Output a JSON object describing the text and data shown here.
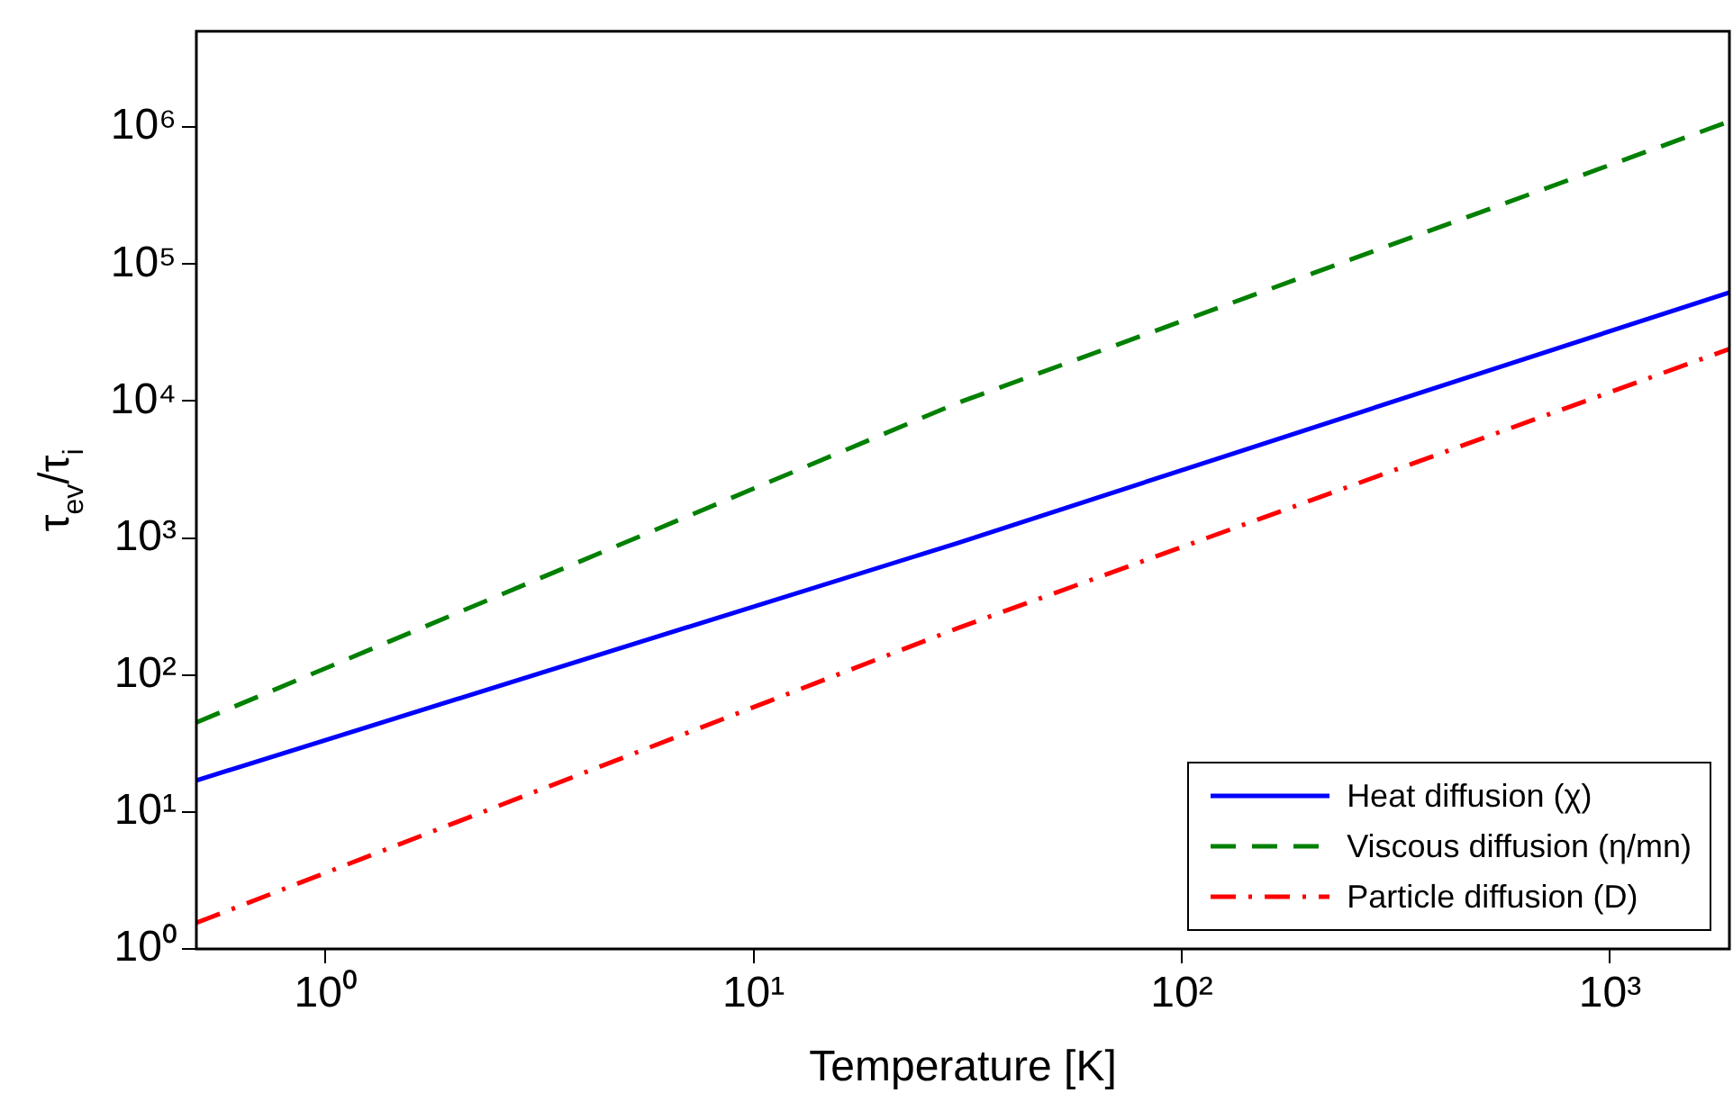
{
  "chart_data": {
    "type": "line",
    "xlabel": "Temperature [K]",
    "ylabel": "τ$_{ev}$/τ$_{i}$",
    "log": "xy",
    "grid": false,
    "legend": "bottom right",
    "marker": "none",
    "xlim": [
      0.5,
      1900
    ],
    "ylim": [
      1,
      5000000
    ],
    "xticks": [
      {
        "value": 1,
        "label": "10⁰"
      },
      {
        "value": 10,
        "label": "10¹"
      },
      {
        "value": 100,
        "label": "10²"
      },
      {
        "value": 1000,
        "label": "10³"
      }
    ],
    "yticks": [
      {
        "value": 1,
        "label": "10⁰"
      },
      {
        "value": 10,
        "label": "10¹"
      },
      {
        "value": 100,
        "label": "10²"
      },
      {
        "value": 1000,
        "label": "10³"
      },
      {
        "value": 10000,
        "label": "10⁴"
      },
      {
        "value": 100000,
        "label": "10⁵"
      },
      {
        "value": 1000000,
        "label": "10⁶"
      }
    ],
    "series": [
      {
        "name": "Heat diffusion (χ)",
        "color": "#0000ff",
        "line_style": "solid",
        "x": [
          0.5,
          30,
          1900
        ],
        "values": [
          17,
          920,
          62000
        ]
      },
      {
        "name": "Viscous diffusion (η/mn)",
        "color": "#008000",
        "line_style": "dashed",
        "x": [
          0.5,
          30,
          1900
        ],
        "values": [
          45,
          9700,
          1100000
        ]
      },
      {
        "name": "Particle diffusion (D)",
        "color": "#ff0000",
        "line_style": "dashdot",
        "x": [
          0.5,
          30,
          1900
        ],
        "values": [
          1.55,
          220,
          24000
        ]
      }
    ]
  }
}
